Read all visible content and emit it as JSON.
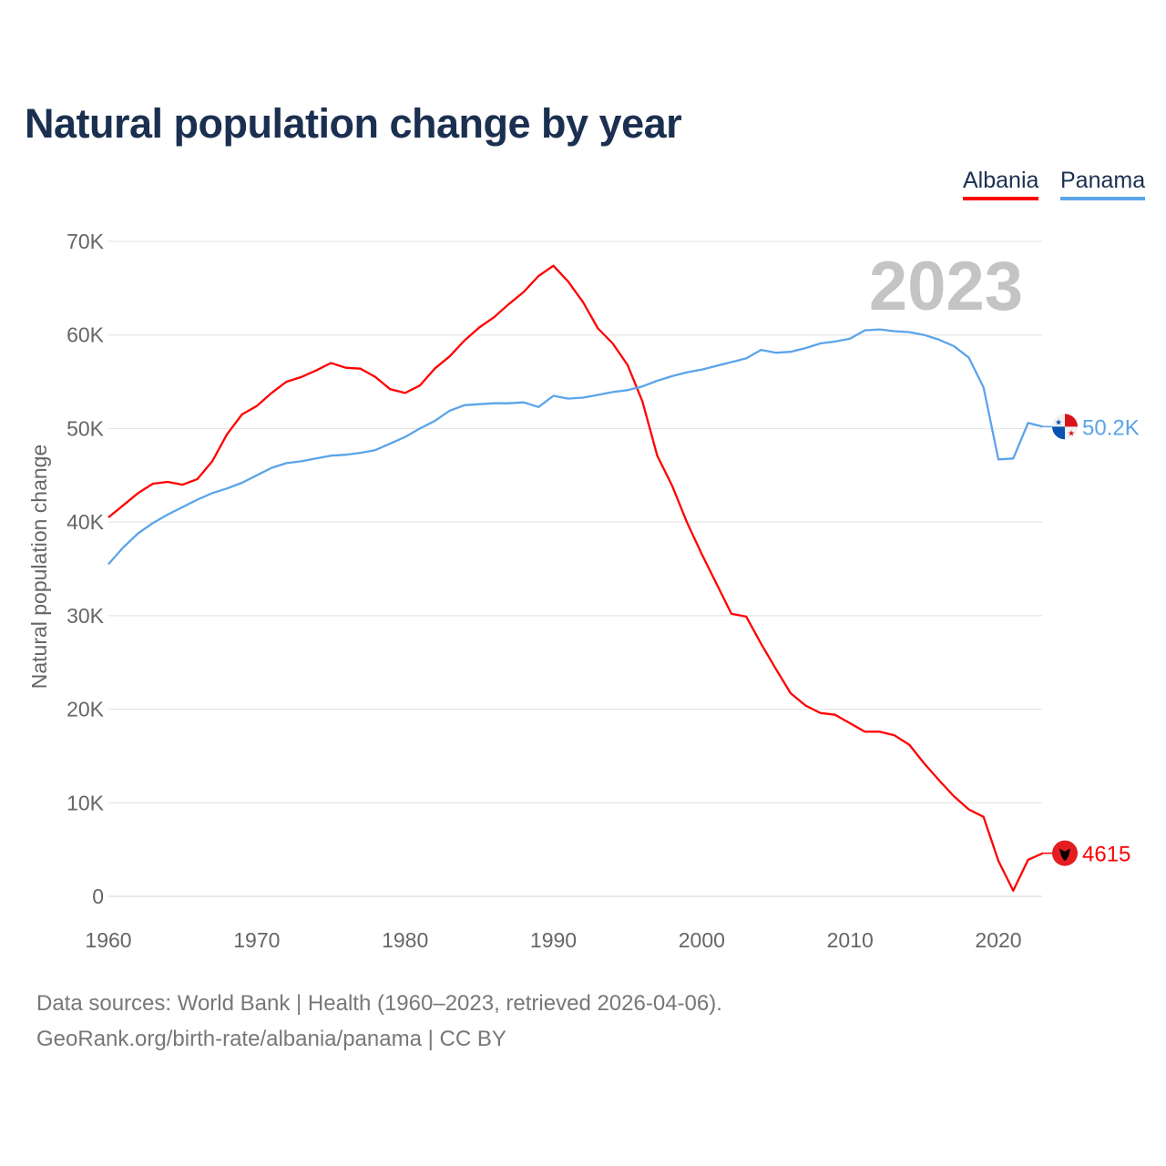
{
  "title": "Natural population change by year",
  "legend": [
    {
      "name": "Albania",
      "color": "#ff0000"
    },
    {
      "name": "Panama",
      "color": "#5ba4ea"
    }
  ],
  "year_watermark": "2023",
  "end_labels": {
    "albania": "4615",
    "panama": "50.2K"
  },
  "footer": {
    "line1": "Data sources: World Bank | Health (1960–2023, retrieved 2026-04-06).",
    "line2": "GeoRank.org/birth-rate/albania/panama | CC BY"
  },
  "chart_data": {
    "type": "line",
    "title": "Natural population change by year",
    "xlabel": "",
    "ylabel": "Natural population change",
    "xlim": [
      1960,
      2023
    ],
    "ylim": [
      0,
      70000
    ],
    "x_ticks": [
      "1960",
      "1970",
      "1980",
      "1990",
      "2000",
      "2010",
      "2020"
    ],
    "y_ticks": [
      "0",
      "10K",
      "20K",
      "30K",
      "40K",
      "50K",
      "60K",
      "70K"
    ],
    "grid": true,
    "legend_position": "top-right",
    "x": [
      1960,
      1961,
      1962,
      1963,
      1964,
      1965,
      1966,
      1967,
      1968,
      1969,
      1970,
      1971,
      1972,
      1973,
      1974,
      1975,
      1976,
      1977,
      1978,
      1979,
      1980,
      1981,
      1982,
      1983,
      1984,
      1985,
      1986,
      1987,
      1988,
      1989,
      1990,
      1991,
      1992,
      1993,
      1994,
      1995,
      1996,
      1997,
      1998,
      1999,
      2000,
      2001,
      2002,
      2003,
      2004,
      2005,
      2006,
      2007,
      2008,
      2009,
      2010,
      2011,
      2012,
      2013,
      2014,
      2015,
      2016,
      2017,
      2018,
      2019,
      2020,
      2021,
      2022,
      2023
    ],
    "series": [
      {
        "name": "Albania",
        "color": "#ff0000",
        "values": [
          40500,
          41800,
          43100,
          44100,
          44300,
          44000,
          44600,
          46500,
          49400,
          51500,
          52400,
          53800,
          55000,
          55500,
          56200,
          57000,
          56500,
          56400,
          55500,
          54200,
          53800,
          54600,
          56400,
          57700,
          59400,
          60800,
          61900,
          63300,
          64600,
          66300,
          67400,
          65700,
          63500,
          60700,
          59100,
          56800,
          52900,
          47100,
          43900,
          40000,
          36600,
          33400,
          30200,
          29900,
          27000,
          24300,
          21700,
          20400,
          19600,
          19400,
          18500,
          17600,
          17600,
          17200,
          16200,
          14200,
          12400,
          10700,
          9300,
          8500,
          3800,
          600,
          3900,
          4615
        ]
      },
      {
        "name": "Panama",
        "color": "#5ba4ea",
        "values": [
          35500,
          37300,
          38800,
          39900,
          40800,
          41600,
          42400,
          43100,
          43600,
          44200,
          45000,
          45800,
          46300,
          46500,
          46800,
          47100,
          47200,
          47400,
          47700,
          48400,
          49100,
          50000,
          50800,
          51900,
          52500,
          52600,
          52700,
          52700,
          52800,
          52300,
          53500,
          53200,
          53300,
          53600,
          53900,
          54100,
          54500,
          55100,
          55600,
          56000,
          56300,
          56700,
          57100,
          57500,
          58400,
          58100,
          58200,
          58600,
          59100,
          59300,
          59600,
          60500,
          60600,
          60400,
          60300,
          60000,
          59500,
          58800,
          57600,
          54400,
          46700,
          46800,
          50600,
          50200
        ]
      }
    ]
  }
}
